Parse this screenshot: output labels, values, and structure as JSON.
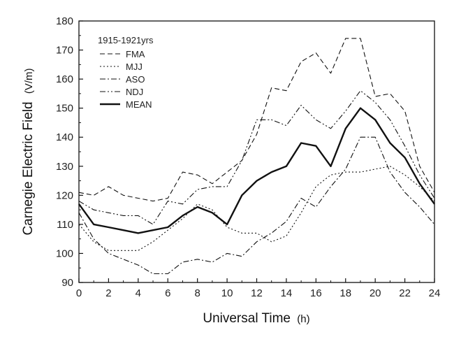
{
  "chart_data": {
    "type": "line",
    "title": "",
    "xlabel": "Universal Time",
    "xlabel_unit": "(h)",
    "ylabel": "Carnegie Electric Field",
    "ylabel_unit": "(V/m)",
    "xlim": [
      0,
      24
    ],
    "ylim": [
      90,
      180
    ],
    "xticks": [
      0,
      2,
      4,
      6,
      8,
      10,
      12,
      14,
      16,
      18,
      20,
      22,
      24
    ],
    "yticks": [
      90,
      100,
      110,
      120,
      130,
      140,
      150,
      160,
      170,
      180
    ],
    "grid": false,
    "legend_position": "top-left",
    "legend_title": "1915-1921yrs",
    "x": [
      0,
      1,
      2,
      3,
      4,
      5,
      6,
      7,
      8,
      9,
      10,
      11,
      12,
      13,
      14,
      15,
      16,
      17,
      18,
      19,
      20,
      21,
      22,
      23,
      24
    ],
    "series": [
      {
        "name": "FMA",
        "style": "dashed",
        "values": [
          121,
          120,
          123,
          120,
          119,
          118,
          119,
          128,
          127,
          124,
          128,
          132,
          141,
          157,
          156,
          166,
          169,
          162,
          174,
          174,
          154,
          155,
          149,
          130,
          121
        ]
      },
      {
        "name": "MJJ",
        "style": "dotted",
        "values": [
          110,
          104,
          101,
          101,
          101,
          104,
          108,
          112,
          117,
          115,
          109,
          107,
          107,
          104,
          106,
          114,
          123,
          127,
          128,
          128,
          129,
          130,
          127,
          123,
          118
        ]
      },
      {
        "name": "ASO",
        "style": "dashdot",
        "values": [
          114,
          105,
          100,
          98,
          96,
          93,
          93,
          97,
          98,
          97,
          100,
          99,
          104,
          107,
          111,
          119,
          116,
          123,
          129,
          140,
          140,
          128,
          121,
          116,
          110
        ]
      },
      {
        "name": "NDJ",
        "style": "dashdotdot",
        "values": [
          118,
          115,
          114,
          113,
          113,
          110,
          118,
          117,
          122,
          123,
          123,
          132,
          146,
          146,
          144,
          151,
          146,
          143,
          149,
          156,
          152,
          146,
          137,
          127,
          119
        ]
      },
      {
        "name": "MEAN",
        "style": "solid",
        "values": [
          117,
          110,
          109,
          108,
          107,
          108,
          109,
          113,
          116,
          114,
          110,
          120,
          125,
          128,
          130,
          138,
          137,
          130,
          143,
          150,
          146,
          138,
          133,
          124,
          117
        ]
      }
    ]
  }
}
